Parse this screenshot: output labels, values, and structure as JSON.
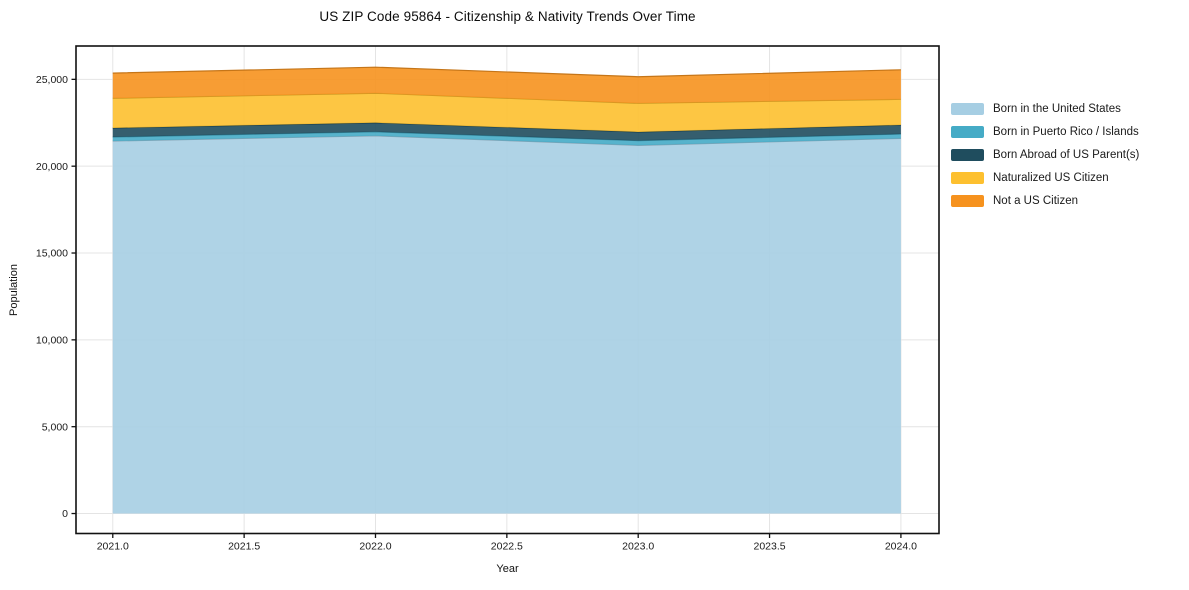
{
  "chart_data": {
    "type": "area",
    "stacked": true,
    "title": "US ZIP Code 95864 - Citizenship & Nativity Trends Over Time",
    "xlabel": "Year",
    "ylabel": "Population",
    "x": [
      2021,
      2022,
      2023,
      2024
    ],
    "series": [
      {
        "name": "Born in the United States",
        "color": "#a6cee3",
        "values": [
          21450,
          21750,
          21200,
          21600
        ]
      },
      {
        "name": "Born in Puerto Rico / Islands",
        "color": "#45abc6",
        "values": [
          230,
          230,
          270,
          250
        ]
      },
      {
        "name": "Born Abroad of US Parent(s)",
        "color": "#1f4d5e",
        "values": [
          520,
          520,
          500,
          520
        ]
      },
      {
        "name": "Naturalized US Citizen",
        "color": "#fdc02f",
        "values": [
          1710,
          1700,
          1650,
          1480
        ]
      },
      {
        "name": "Not a US Citizen",
        "color": "#f6921e",
        "values": [
          1450,
          1500,
          1530,
          1700
        ]
      }
    ],
    "stack_totals": [
      25360,
      25700,
      25150,
      25550
    ],
    "xtick_values": [
      2021.0,
      2021.5,
      2022.0,
      2022.5,
      2023.0,
      2023.5,
      2024.0
    ],
    "xtick_labels": [
      "2021.0",
      "2021.5",
      "2022.0",
      "2022.5",
      "2023.0",
      "2023.5",
      "2024.0"
    ],
    "ytick_values": [
      0,
      5000,
      10000,
      15000,
      20000,
      25000
    ],
    "ytick_labels": [
      "0",
      "5,000",
      "10,000",
      "15,000",
      "20,000",
      "25,000"
    ],
    "xlim": [
      2020.86,
      2024.145
    ],
    "ylim": [
      -1150,
      26920
    ],
    "grid": true,
    "legend_position": "right"
  },
  "style_colors": {
    "background": "#ffffff",
    "grid": "#e4e4e4",
    "spine": "#111111",
    "tick_text": "#1a1a1a"
  }
}
